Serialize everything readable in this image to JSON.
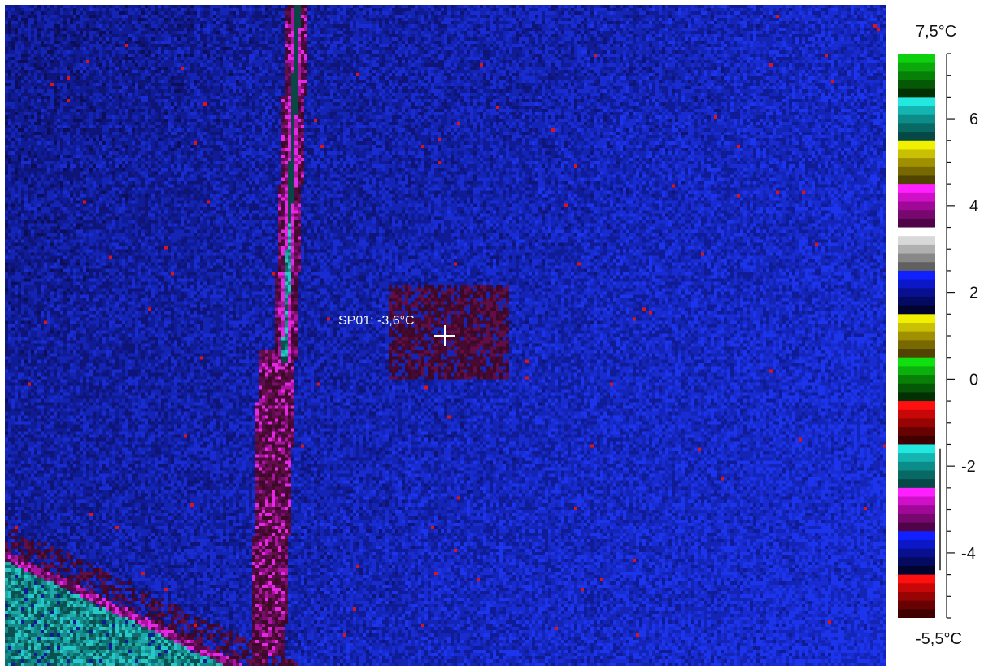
{
  "thermal_image": {
    "spot_label": "SP01: -3,6°C",
    "spot_temperature_c": -3.6
  },
  "temperature_scale": {
    "max_label": "7,5°C",
    "min_label": "-5,5°C",
    "max_c": 7.5,
    "min_c": -5.5,
    "tick_labels": [
      "6",
      "4",
      "2",
      "0",
      "-2",
      "-4"
    ],
    "tick_values": [
      6,
      4,
      2,
      0,
      -2,
      -4
    ],
    "palette_bands": [
      [
        "#0fd00f",
        "#0aa80a",
        "#078007",
        "#055805",
        "#033003"
      ],
      [
        "#22e8e0",
        "#14b4b0",
        "#0c8c88",
        "#086864",
        "#054846"
      ],
      [
        "#f0f000",
        "#c8c000",
        "#a09000",
        "#786800",
        "#504400"
      ],
      [
        "#ff20ff",
        "#d010c8",
        "#a00898",
        "#780870",
        "#500448"
      ],
      [
        "#ffffff",
        "#d8d8d8",
        "#b0b0b0",
        "#888888",
        "#606060"
      ],
      [
        "#1020ff",
        "#0c18c8",
        "#081090",
        "#040a60",
        "#020430"
      ],
      [
        "#f0f000",
        "#c8c000",
        "#a09000",
        "#786800",
        "#504400"
      ],
      [
        "#10e010",
        "#0cb00c",
        "#088008",
        "#055805",
        "#033003"
      ],
      [
        "#ff1010",
        "#c80808",
        "#980404",
        "#680202",
        "#400000"
      ],
      [
        "#22e8e0",
        "#14b4b0",
        "#0c8c88",
        "#086864",
        "#054846"
      ],
      [
        "#ff20ff",
        "#d010c8",
        "#a00898",
        "#780870",
        "#500448"
      ],
      [
        "#1020ff",
        "#0c18c8",
        "#081090",
        "#040a60",
        "#020430"
      ],
      [
        "#ff1010",
        "#c80808",
        "#980404",
        "#680202",
        "#400000"
      ]
    ],
    "range_marker_c": [
      -4.4,
      -1.6
    ]
  }
}
